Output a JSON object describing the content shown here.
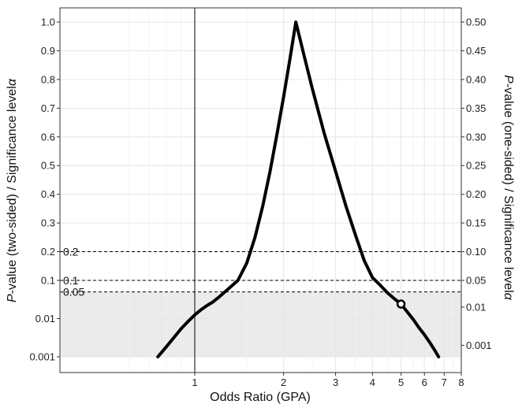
{
  "chart_data": {
    "type": "line",
    "title": "",
    "xlabel": "Odds Ratio (GPA)",
    "ylabel_left_prefix": "P",
    "ylabel_left_rest": "-value (two-sided) / Significance level",
    "ylabel_left_alpha": "α",
    "ylabel_right_prefix": "P",
    "ylabel_right_rest": "-value (one-sided) / Significance level",
    "ylabel_right_alpha": "α",
    "x_scale": "log",
    "xlim": [
      0.52,
      8
    ],
    "x_ticks": [
      1,
      2,
      3,
      4,
      5,
      6,
      7,
      8
    ],
    "y_left_ticks": [
      "0.001",
      "0.01",
      "0.1",
      "0.2",
      "0.3",
      "0.4",
      "0.5",
      "0.6",
      "0.7",
      "0.8",
      "0.9",
      "1.0"
    ],
    "y_right_ticks": [
      "0.001",
      "0.01",
      "0.05",
      "0.10",
      "0.15",
      "0.20",
      "0.25",
      "0.30",
      "0.35",
      "0.40",
      "0.45",
      "0.50"
    ],
    "reference_lines": [
      {
        "value": 0.2,
        "label": "0.2"
      },
      {
        "value": 0.1,
        "label": "0.1"
      },
      {
        "value": 0.05,
        "label": "0.05"
      }
    ],
    "shaded_region": {
      "y_from": 0.001,
      "y_to": 0.05,
      "color": "#ebebeb"
    },
    "null_line_x": 1,
    "marked_point": {
      "x": 5,
      "y": 0.024
    },
    "series": [
      {
        "color": "#000000",
        "points": [
          [
            0.75,
            0.001
          ],
          [
            0.8,
            0.0018
          ],
          [
            0.85,
            0.0032
          ],
          [
            0.9,
            0.0055
          ],
          [
            0.95,
            0.0085
          ],
          [
            1.0,
            0.0125
          ],
          [
            1.05,
            0.017
          ],
          [
            1.1,
            0.022
          ],
          [
            1.15,
            0.027
          ],
          [
            1.2,
            0.035
          ],
          [
            1.3,
            0.06
          ],
          [
            1.4,
            0.1
          ],
          [
            1.5,
            0.16
          ],
          [
            1.6,
            0.25
          ],
          [
            1.7,
            0.36
          ],
          [
            1.8,
            0.48
          ],
          [
            1.9,
            0.61
          ],
          [
            2.0,
            0.74
          ],
          [
            2.1,
            0.87
          ],
          [
            2.2,
            1.0
          ],
          [
            2.35,
            0.88
          ],
          [
            2.5,
            0.77
          ],
          [
            2.75,
            0.61
          ],
          [
            3.0,
            0.48
          ],
          [
            3.25,
            0.36
          ],
          [
            3.5,
            0.26
          ],
          [
            3.75,
            0.17
          ],
          [
            4.0,
            0.11
          ],
          [
            4.25,
            0.075
          ],
          [
            4.5,
            0.047
          ],
          [
            4.75,
            0.033
          ],
          [
            5.0,
            0.024
          ],
          [
            5.25,
            0.015
          ],
          [
            5.5,
            0.0095
          ],
          [
            5.75,
            0.0058
          ],
          [
            6.0,
            0.0038
          ],
          [
            6.25,
            0.0024
          ],
          [
            6.5,
            0.0015
          ],
          [
            6.7,
            0.001
          ]
        ]
      }
    ]
  }
}
